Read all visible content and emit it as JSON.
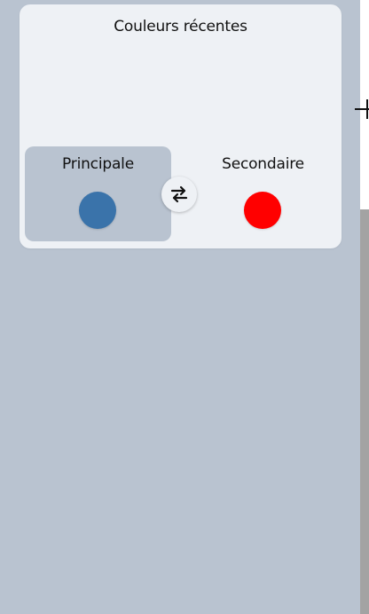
{
  "recent_colors": {
    "title": "Couleurs récentes",
    "primary": {
      "label": "Principale",
      "color": "#3a73aa"
    },
    "secondary": {
      "label": "Secondaire",
      "color": "#ff0000"
    },
    "swap_icon": "swap-arrows-icon"
  },
  "theme": {
    "panel_bg": "#b9c3d0",
    "card_bg": "#eef1f5",
    "canvas_bg": "#ffffff",
    "canvas_border": "#a3a3a3"
  }
}
